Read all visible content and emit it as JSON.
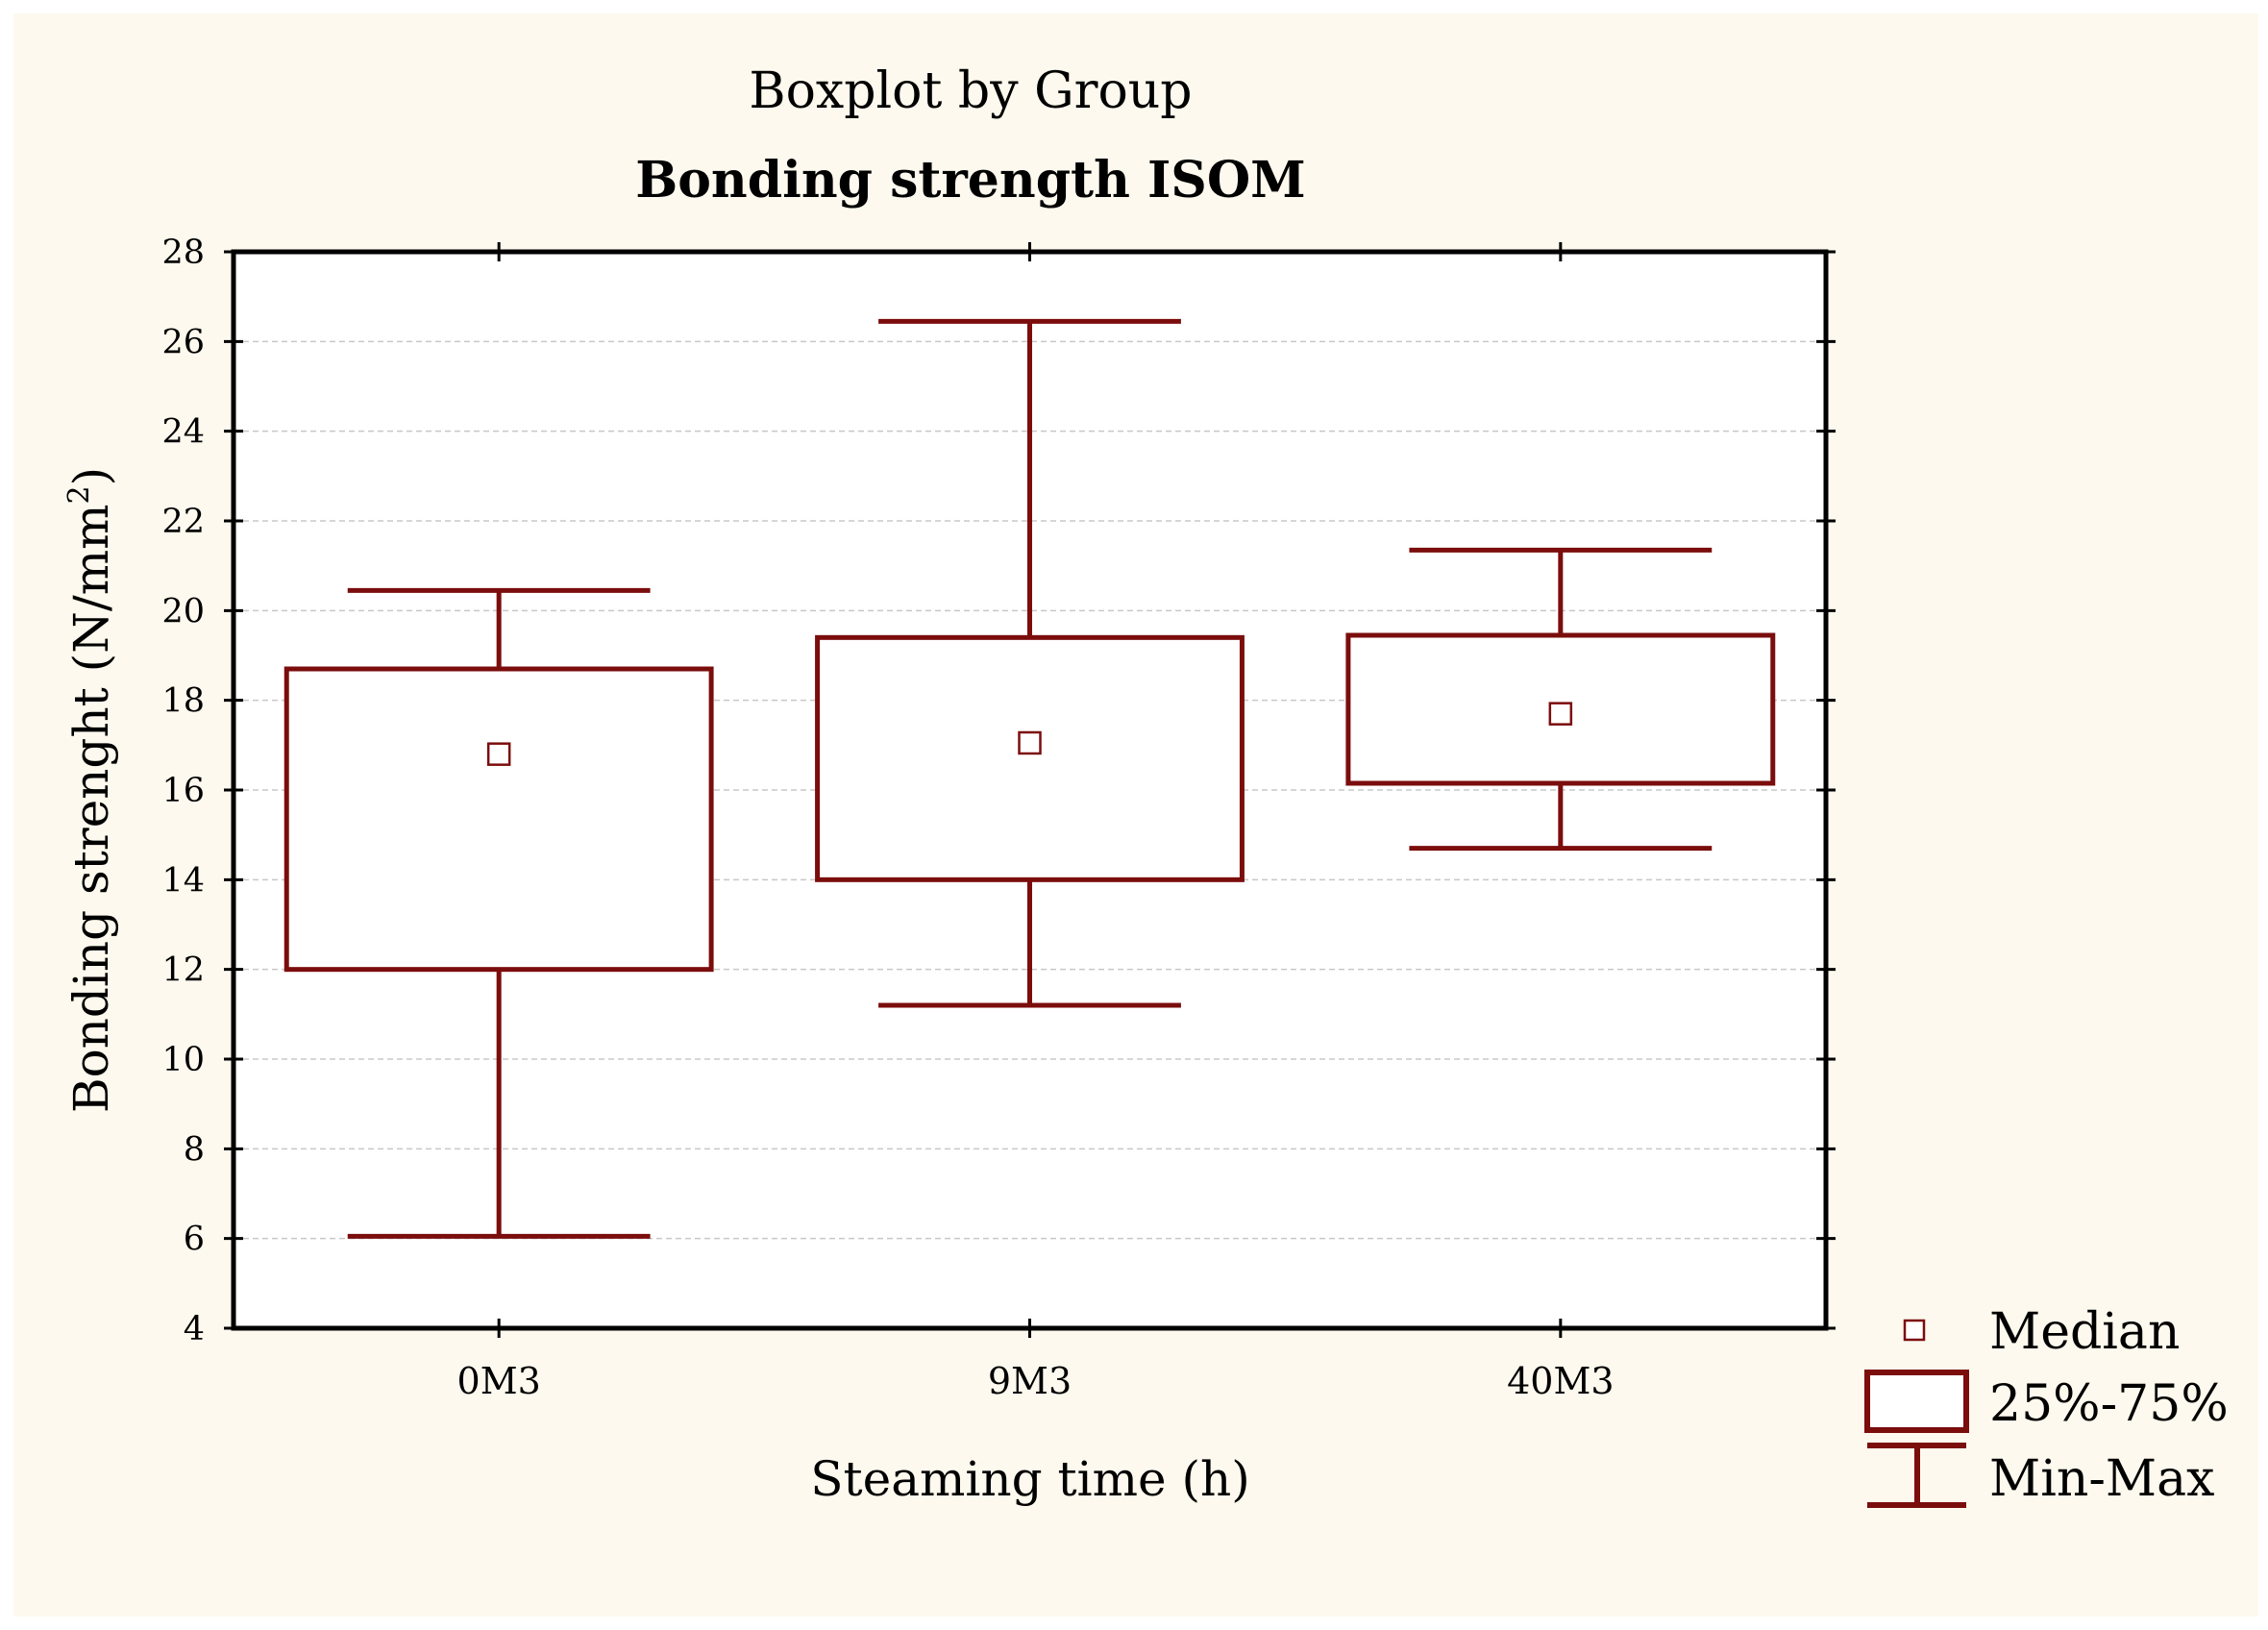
{
  "chart_data": {
    "type": "boxplot",
    "title": "Boxplot by Group",
    "subtitle": "Bonding strength ISOM",
    "xlabel": "Steaming time (h)",
    "ylabel": "Bonding strenght (N/mm",
    "ylabel_sup": "2",
    "ylabel_end": ")",
    "ylim": [
      4,
      28
    ],
    "yticks": [
      4,
      6,
      8,
      10,
      12,
      14,
      16,
      18,
      20,
      22,
      24,
      26,
      28
    ],
    "grid": true,
    "categories": [
      "0M3",
      "9M3",
      "40M3"
    ],
    "groups": [
      {
        "name": "0M3",
        "min": 6.05,
        "q1": 12.0,
        "median": 16.8,
        "q3": 18.7,
        "max": 20.45
      },
      {
        "name": "9M3",
        "min": 11.2,
        "q1": 14.0,
        "median": 17.05,
        "q3": 19.4,
        "max": 26.45
      },
      {
        "name": "40M3",
        "min": 14.7,
        "q1": 16.15,
        "median": 17.7,
        "q3": 19.45,
        "max": 21.35
      }
    ],
    "legend": {
      "position": "bottom-right",
      "entries": [
        "Median",
        "25%-75%",
        "Min-Max"
      ]
    },
    "colors": {
      "series": "#7b0d0d",
      "background": "#fdf9ee",
      "grid": "#c8c8c8",
      "axis": "#000000"
    }
  }
}
